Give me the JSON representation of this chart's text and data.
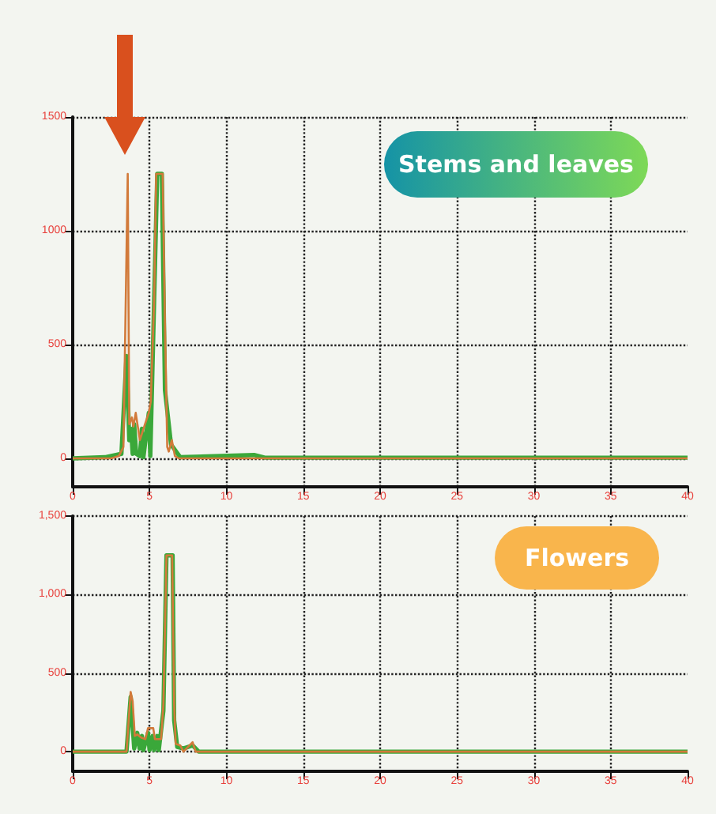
{
  "chart_data": [
    {
      "type": "line",
      "annotations": [
        "Stems and leaves"
      ],
      "xlim": [
        0,
        40
      ],
      "xticks": [
        0,
        5,
        10,
        15,
        20,
        25,
        30,
        35,
        40
      ],
      "ylim": [
        -125,
        1500
      ],
      "yticks": [
        0,
        500,
        1000,
        1500
      ],
      "grid": true,
      "marker": "none",
      "series": [
        {
          "color": "#d27a3a",
          "x": [
            0,
            2.5,
            3.0,
            3.3,
            3.58,
            3.68,
            3.85,
            3.95,
            4.1,
            4.37,
            4.7,
            4.95,
            5.08,
            5.3,
            5.43,
            5.85,
            6.0,
            6.15,
            6.25,
            6.45,
            6.65,
            6.9,
            12,
            40
          ],
          "values": [
            0,
            0,
            10,
            50,
            1250,
            150,
            180,
            140,
            200,
            80,
            150,
            200,
            250,
            700,
            1250,
            1250,
            600,
            50,
            30,
            80,
            10,
            0,
            0,
            0
          ]
        },
        {
          "color": "#3aa83a",
          "x": [
            0,
            2.1,
            3.17,
            3.5,
            3.68,
            3.8,
            3.9,
            4.0,
            4.13,
            4.37,
            4.5,
            4.6,
            4.95,
            5.05,
            5.3,
            5.5,
            5.8,
            6.0,
            6.4,
            7.0,
            11.8,
            12.5,
            40
          ],
          "values": [
            0,
            5,
            20,
            450,
            80,
            130,
            20,
            150,
            20,
            10,
            130,
            5,
            200,
            10,
            700,
            1250,
            1250,
            300,
            60,
            5,
            15,
            3,
            3
          ]
        }
      ]
    },
    {
      "type": "line",
      "annotations": [
        "Flowers"
      ],
      "xlim": [
        0,
        40
      ],
      "xticks": [
        0,
        5,
        10,
        15,
        20,
        25,
        30,
        35,
        40
      ],
      "ylim": [
        -125,
        1500
      ],
      "yticks": [
        0,
        500,
        {
          "value": 1000,
          "label": "1,000"
        },
        {
          "value": 1500,
          "label": "1,500"
        }
      ],
      "grid": true,
      "marker": "none",
      "series": [
        {
          "color": "#d27a3a",
          "x": [
            0,
            3.5,
            3.77,
            3.9,
            4.04,
            4.2,
            4.45,
            4.73,
            4.9,
            5.24,
            5.35,
            5.75,
            5.9,
            6.1,
            6.47,
            6.6,
            6.7,
            7.0,
            7.2,
            7.8,
            8.0,
            9,
            40
          ],
          "values": [
            0,
            0,
            380,
            320,
            100,
            110,
            90,
            80,
            150,
            150,
            80,
            80,
            300,
            1250,
            1250,
            300,
            50,
            40,
            0,
            60,
            0,
            0,
            0
          ]
        },
        {
          "color": "#3aa83a",
          "x": [
            0,
            3.5,
            3.77,
            4.0,
            4.2,
            4.35,
            4.5,
            4.6,
            4.9,
            5.0,
            5.2,
            5.3,
            5.5,
            5.6,
            5.9,
            6.1,
            6.5,
            6.6,
            6.8,
            7.2,
            7.8,
            8.2,
            40
          ],
          "values": [
            0,
            0,
            350,
            20,
            120,
            20,
            100,
            10,
            120,
            10,
            100,
            10,
            100,
            10,
            260,
            1250,
            1250,
            200,
            30,
            20,
            40,
            0,
            0
          ]
        }
      ]
    }
  ]
}
